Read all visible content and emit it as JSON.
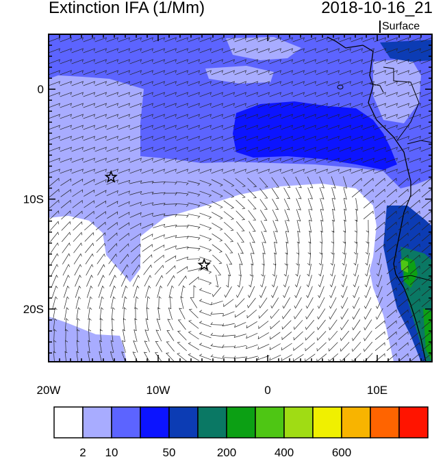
{
  "title": "Extinction IFA (1/Mm)",
  "datetime": "2018-10-16_21",
  "level": "Surface",
  "lat_ticks": [
    {
      "label": "0",
      "lat": 0
    },
    {
      "label": "10S",
      "lat": -10
    },
    {
      "label": "20S",
      "lat": -20
    }
  ],
  "lon_ticks": [
    {
      "label": "20W",
      "lon": -20
    },
    {
      "label": "10W",
      "lon": -10
    },
    {
      "label": "0",
      "lon": 0
    },
    {
      "label": "10E",
      "lon": 10
    }
  ],
  "extent": {
    "lon_min": -20,
    "lon_max": 15,
    "lat_min": -24.8,
    "lat_max": 5
  },
  "colorbar": {
    "colors": [
      "#ffffff",
      "#a8acff",
      "#5c64ff",
      "#0c14ff",
      "#0c3cb4",
      "#0a7864",
      "#0ca014",
      "#4ec614",
      "#a0dc14",
      "#f0f000",
      "#f8b400",
      "#ff6400",
      "#ff1400"
    ],
    "labels": [
      {
        "text": "2",
        "boundary": 1
      },
      {
        "text": "10",
        "boundary": 2
      },
      {
        "text": "50",
        "boundary": 4
      },
      {
        "text": "200",
        "boundary": 6
      },
      {
        "text": "400",
        "boundary": 8
      },
      {
        "text": "600",
        "boundary": 10
      }
    ]
  },
  "markers": [
    {
      "name": "star",
      "lon": -14.3,
      "lat": -8
    },
    {
      "name": "star",
      "lon": -5.8,
      "lat": -16
    }
  ]
}
